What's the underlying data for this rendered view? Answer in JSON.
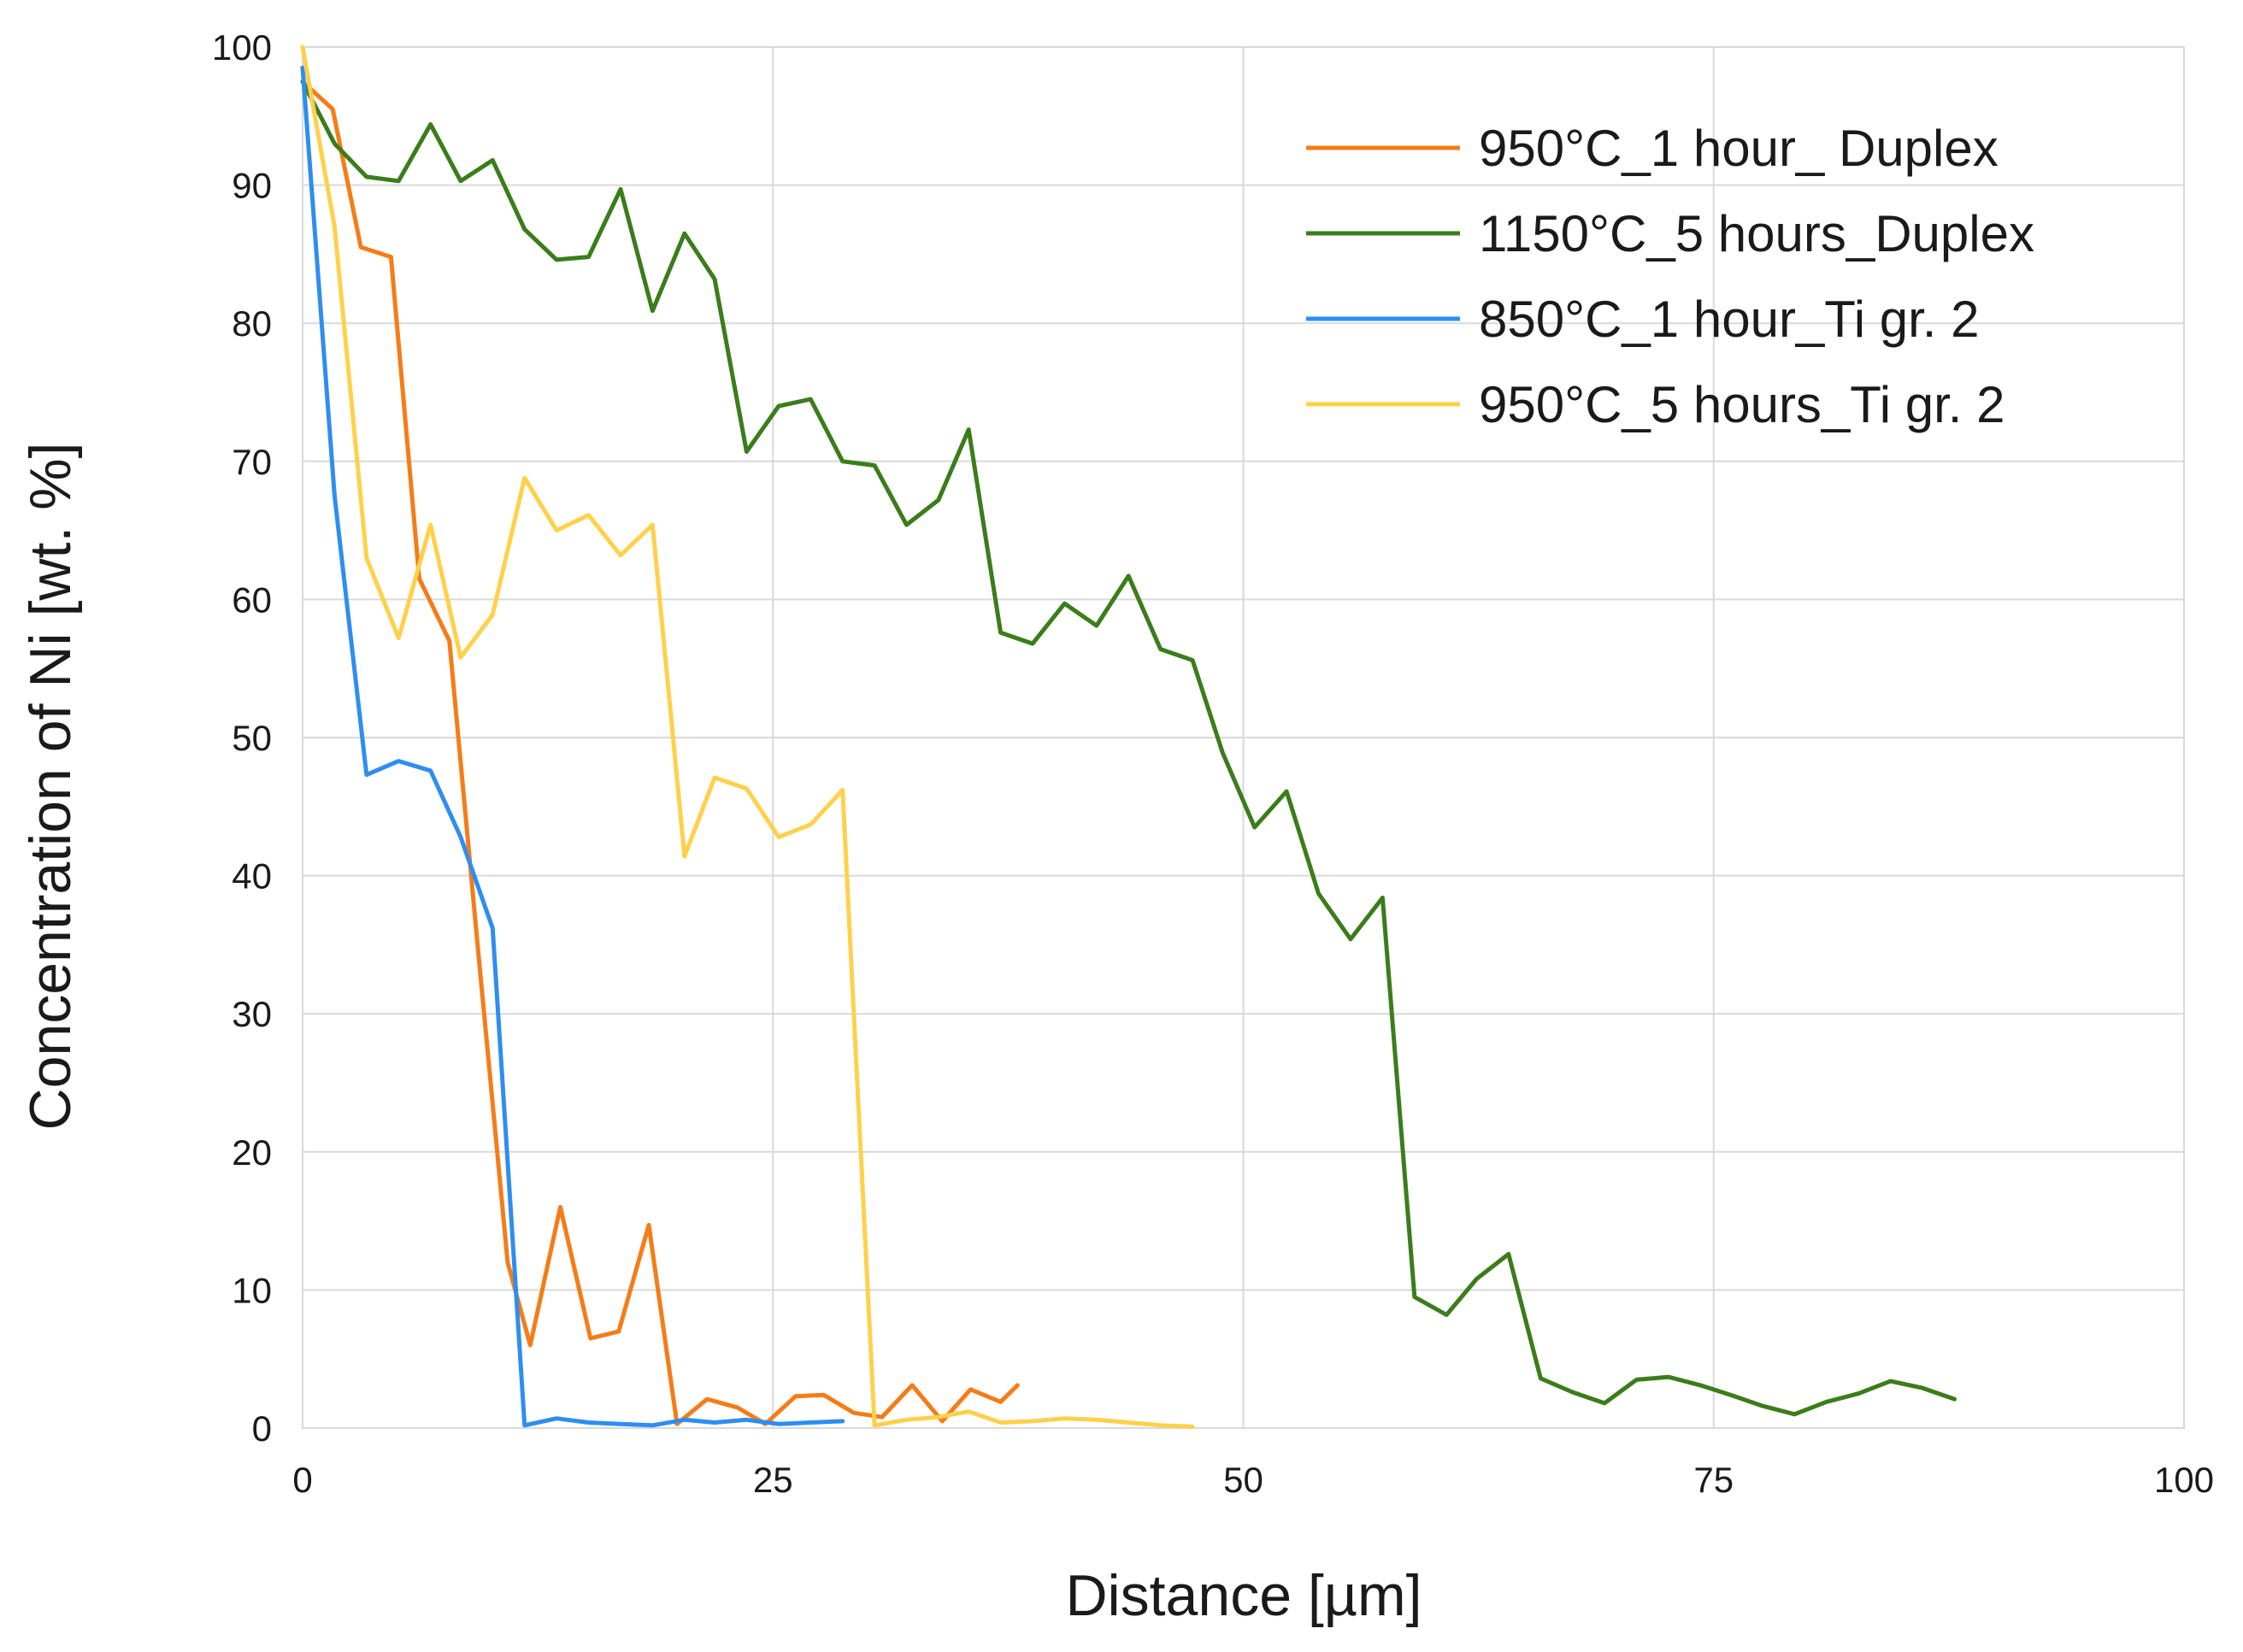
{
  "chart_data": {
    "type": "line",
    "title": "",
    "xlabel": "Distance [µm]",
    "ylabel": "Concentration of Ni [wt. %]",
    "xlim": [
      0,
      100
    ],
    "ylim": [
      0,
      100
    ],
    "x_ticks": [
      0,
      25,
      50,
      75,
      100
    ],
    "y_ticks": [
      0,
      10,
      20,
      30,
      40,
      50,
      60,
      70,
      80,
      90,
      100
    ],
    "grid": true,
    "legend_position": "top-right",
    "series": [
      {
        "name": "950°C_1 hour_ Duplex",
        "color": "#f57c17",
        "x": [
          0,
          1.6,
          3.1,
          4.7,
          6.2,
          7.8,
          9.3,
          10.9,
          12.1,
          13.7,
          15.3,
          16.8,
          18.4,
          19.9,
          21.5,
          23.1,
          24.6,
          26.2,
          27.7,
          29.3,
          30.8,
          32.4,
          34.0,
          35.5,
          37.1,
          38.0
        ],
        "y": [
          97.5,
          95.5,
          85.5,
          84.8,
          61.5,
          57.0,
          35.0,
          12.0,
          6.0,
          16.0,
          6.5,
          7.0,
          14.7,
          0.3,
          2.1,
          1.5,
          0.3,
          2.3,
          2.4,
          1.1,
          0.8,
          3.1,
          0.5,
          2.8,
          1.9,
          3.1
        ]
      },
      {
        "name": "1150°C_5 hours_Duplex",
        "color": "#3a7d1a",
        "x": [
          0,
          1.7,
          3.4,
          5.1,
          6.8,
          8.4,
          10.1,
          11.8,
          13.5,
          15.2,
          16.9,
          18.6,
          20.3,
          21.9,
          23.6,
          25.3,
          27.0,
          28.7,
          30.4,
          32.1,
          33.8,
          35.4,
          37.1,
          38.8,
          40.5,
          42.2,
          43.9,
          45.6,
          47.3,
          48.9,
          50.6,
          52.3,
          54.0,
          55.7,
          57.4,
          59.1,
          60.8,
          62.4,
          64.1,
          65.8,
          67.5,
          69.2,
          70.9,
          72.6,
          74.3,
          75.9,
          77.6,
          79.3,
          81.0,
          82.7,
          84.4,
          86.1,
          87.8
        ],
        "y": [
          97.5,
          93.0,
          90.6,
          90.3,
          94.4,
          90.3,
          91.8,
          86.8,
          84.6,
          84.8,
          89.7,
          80.9,
          86.5,
          83.2,
          70.7,
          74.0,
          74.5,
          70.0,
          69.7,
          65.4,
          67.2,
          72.3,
          57.6,
          56.8,
          59.7,
          58.1,
          61.7,
          56.4,
          55.6,
          48.9,
          43.5,
          46.1,
          38.7,
          35.4,
          38.4,
          9.5,
          8.2,
          10.8,
          12.6,
          3.6,
          2.6,
          1.8,
          3.5,
          3.7,
          3.1,
          2.4,
          1.6,
          1.0,
          1.9,
          2.5,
          3.4,
          2.9,
          2.1
        ]
      },
      {
        "name": "850°C_1 hour_Ti gr. 2",
        "color": "#2e8ef0",
        "x": [
          0,
          1.7,
          3.4,
          5.1,
          6.8,
          8.4,
          10.1,
          11.8,
          13.5,
          15.2,
          16.9,
          18.6,
          20.3,
          21.9,
          23.6,
          25.3,
          27.0,
          28.7
        ],
        "y": [
          98.5,
          67.5,
          47.3,
          48.3,
          47.6,
          42.8,
          36.2,
          0.2,
          0.7,
          0.4,
          0.3,
          0.2,
          0.6,
          0.4,
          0.6,
          0.3,
          0.4,
          0.5
        ]
      },
      {
        "name": "950°C_5 hours_Ti gr. 2",
        "color": "#ffd04a",
        "x": [
          0,
          1.7,
          3.4,
          5.1,
          6.8,
          8.4,
          10.1,
          11.8,
          13.5,
          15.2,
          16.9,
          18.6,
          20.3,
          21.9,
          23.6,
          25.3,
          27.0,
          28.7,
          30.4,
          32.1,
          33.8,
          35.4,
          37.1,
          38.8,
          40.5,
          42.2,
          43.9,
          45.6,
          47.3
        ],
        "y": [
          100,
          87.0,
          63.0,
          57.2,
          65.4,
          55.8,
          58.9,
          68.8,
          65.0,
          66.1,
          63.2,
          65.4,
          41.4,
          47.1,
          46.3,
          42.8,
          43.7,
          46.2,
          0.2,
          0.6,
          0.8,
          1.2,
          0.4,
          0.5,
          0.7,
          0.6,
          0.4,
          0.2,
          0.1
        ]
      }
    ]
  }
}
